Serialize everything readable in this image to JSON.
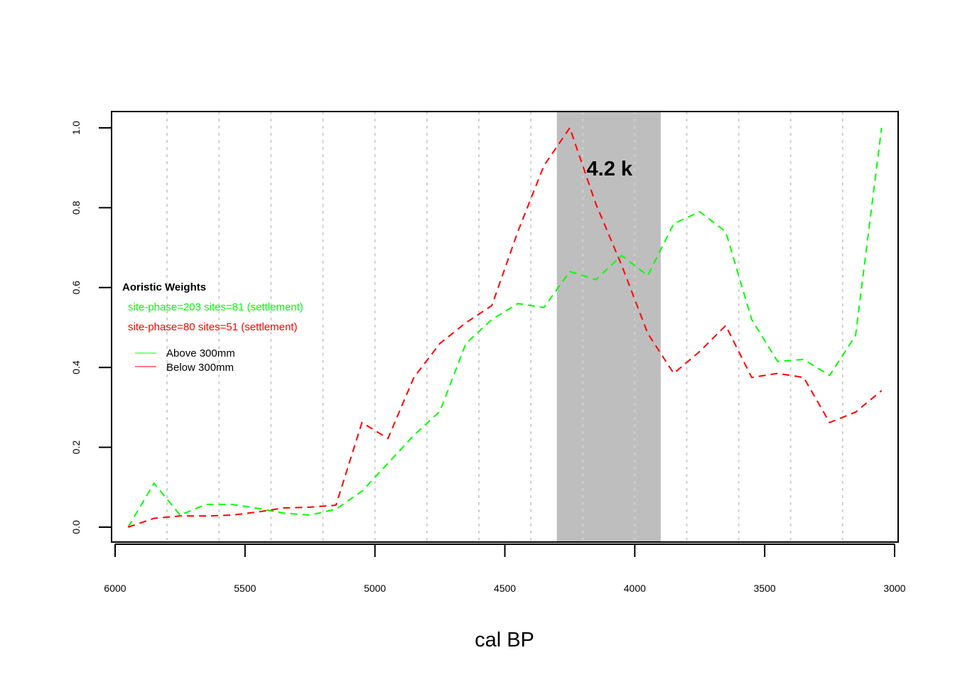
{
  "chart_data": {
    "type": "line",
    "xlabel": "cal BP",
    "ylabel": "",
    "xlim": [
      6000,
      3000
    ],
    "ylim": [
      0,
      1
    ],
    "x_ticks": [
      6000,
      5500,
      5000,
      4500,
      4000,
      3500,
      3000
    ],
    "x_tick_labels": [
      "6000",
      "5500",
      "5000",
      "4500",
      "4000",
      "3500",
      "3000"
    ],
    "y_ticks": [
      0.0,
      0.2,
      0.4,
      0.6,
      0.8,
      1.0
    ],
    "y_tick_labels": [
      "0.0",
      "0.2",
      "0.4",
      "0.6",
      "0.8",
      "1.0"
    ],
    "vertical_gridlines": [
      5800,
      5600,
      5400,
      5200,
      5000,
      4800,
      4600,
      4400,
      4200,
      4000,
      3800,
      3600,
      3400,
      3200
    ],
    "shaded_region": {
      "from": 4300,
      "to": 3900,
      "color": "#bebebe",
      "label": "4.2 k"
    },
    "x": [
      5950,
      5850,
      5750,
      5650,
      5550,
      5450,
      5350,
      5250,
      5150,
      5050,
      4950,
      4850,
      4750,
      4650,
      4550,
      4450,
      4350,
      4250,
      4150,
      4050,
      3950,
      3850,
      3750,
      3650,
      3550,
      3450,
      3350,
      3250,
      3150,
      3050
    ],
    "series": [
      {
        "name": "Above 300mm",
        "color": "#00ff00",
        "values": [
          0.0,
          0.11,
          0.03,
          0.057,
          0.057,
          0.047,
          0.035,
          0.03,
          0.045,
          0.09,
          0.16,
          0.23,
          0.29,
          0.46,
          0.52,
          0.56,
          0.55,
          0.64,
          0.62,
          0.68,
          0.63,
          0.76,
          0.79,
          0.74,
          0.52,
          0.415,
          0.42,
          0.38,
          0.48,
          1.0
        ]
      },
      {
        "name": "Below 300mm",
        "color": "#ff0000",
        "values": [
          0.0,
          0.022,
          0.028,
          0.028,
          0.03,
          0.038,
          0.048,
          0.05,
          0.055,
          0.262,
          0.222,
          0.375,
          0.46,
          0.512,
          0.555,
          0.74,
          0.905,
          1.0,
          0.81,
          0.655,
          0.485,
          0.385,
          0.44,
          0.505,
          0.375,
          0.385,
          0.375,
          0.262,
          0.288,
          0.342
        ]
      }
    ],
    "legend": {
      "title": "Aoristic Weights",
      "placement": "left",
      "lines": [
        {
          "text": "site-phase=203 sites=81 (settlement)",
          "color": "#00ff00"
        },
        {
          "text": "site-phase=80 sites=51 (settlement)",
          "color": "#ff0000"
        }
      ],
      "entries": [
        {
          "text": "Above 300mm",
          "color": "#00ff00"
        },
        {
          "text": "Below 300mm",
          "color": "#ff0000"
        }
      ]
    },
    "grid": "vertical dashed"
  }
}
